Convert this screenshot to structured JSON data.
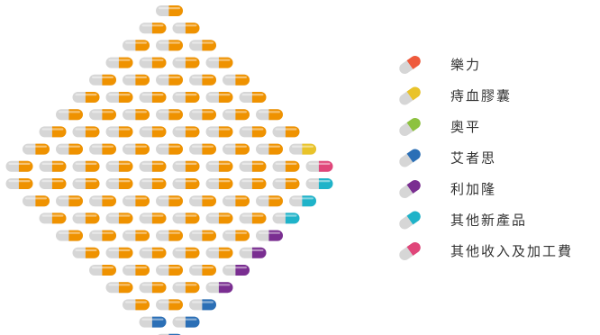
{
  "chart_data": {
    "type": "pictogram",
    "unit": "one capsule per unit",
    "series": [
      {
        "name": "樂力",
        "count": 97,
        "color": "#ef9200",
        "legend_color": "#ef5a3c"
      },
      {
        "name": "痔血膠囊",
        "count": 1,
        "color": "#e9c32a"
      },
      {
        "name": "奧平",
        "count": 1,
        "color": "#8dc23f"
      },
      {
        "name": "艾者思",
        "count": 4,
        "color": "#2b6fb6"
      },
      {
        "name": "利加隆",
        "count": 4,
        "color": "#7a2e91"
      },
      {
        "name": "其他新產品",
        "count": 3,
        "color": "#1fb3c9"
      },
      {
        "name": "其他收入及加工費",
        "count": 1,
        "color": "#e0467a"
      }
    ]
  }
}
